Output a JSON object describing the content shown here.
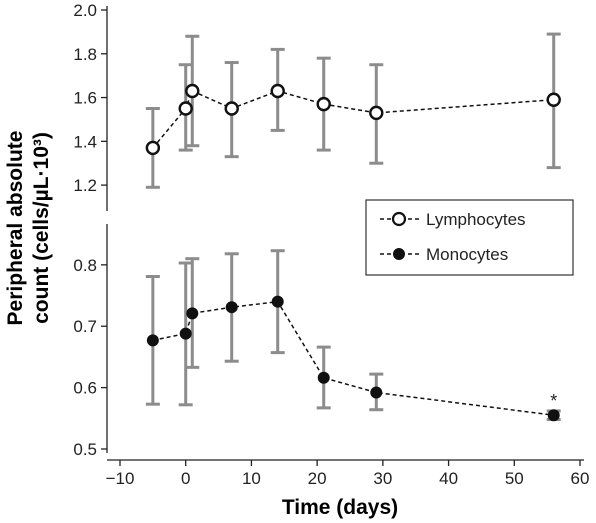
{
  "chart_data": {
    "type": "line",
    "xlabel": "Time (days)",
    "ylabel_line1": "Peripheral absolute",
    "ylabel_line2": "count (cells/µL·10³)",
    "xlim": [
      -10,
      60
    ],
    "x_ticks": [
      "−10",
      "0",
      "10",
      "20",
      "30",
      "40",
      "50",
      "60"
    ],
    "x_tick_values": [
      -10,
      0,
      10,
      20,
      30,
      40,
      50,
      60
    ],
    "panels": [
      {
        "name": "upper",
        "ylim": [
          1.1,
          2.0
        ],
        "y_ticks": [
          "1.2",
          "1.4",
          "1.6",
          "1.8",
          "2.0"
        ],
        "y_tick_values": [
          1.2,
          1.4,
          1.6,
          1.8,
          2.0
        ]
      },
      {
        "name": "lower",
        "ylim": [
          0.5,
          0.86
        ],
        "y_ticks": [
          "0.5",
          "0.6",
          "0.7",
          "0.8"
        ],
        "y_tick_values": [
          0.5,
          0.6,
          0.7,
          0.8
        ]
      }
    ],
    "series": [
      {
        "name": "Lymphocytes",
        "panel": "upper",
        "marker": "open-circle",
        "line_style": "dashed",
        "x": [
          -5,
          0,
          1,
          7,
          14,
          21,
          29,
          56
        ],
        "y": [
          1.37,
          1.55,
          1.63,
          1.55,
          1.63,
          1.57,
          1.53,
          1.59
        ],
        "err_low": [
          1.19,
          1.36,
          1.38,
          1.33,
          1.45,
          1.36,
          1.3,
          1.28
        ],
        "err_high": [
          1.55,
          1.75,
          1.88,
          1.76,
          1.82,
          1.78,
          1.75,
          1.89
        ]
      },
      {
        "name": "Monocytes",
        "panel": "lower",
        "marker": "filled-circle",
        "line_style": "dashed",
        "x": [
          -5,
          0,
          1,
          7,
          14,
          21,
          29,
          56
        ],
        "y": [
          0.677,
          0.688,
          0.721,
          0.731,
          0.74,
          0.616,
          0.592,
          0.555
        ],
        "err_low": [
          0.573,
          0.572,
          0.633,
          0.643,
          0.657,
          0.567,
          0.564,
          0.548
        ],
        "err_high": [
          0.781,
          0.803,
          0.81,
          0.818,
          0.823,
          0.666,
          0.622,
          0.562
        ]
      }
    ],
    "annotations": [
      {
        "text": "*",
        "x": 56,
        "y": 0.578,
        "panel": "lower"
      }
    ],
    "legend_position": "right, between panels",
    "grid": false,
    "colors": {
      "errorbar": "#8c8c8c",
      "line": "#111111",
      "marker_fill_open": "#ffffff",
      "marker_edge": "#111111"
    }
  }
}
